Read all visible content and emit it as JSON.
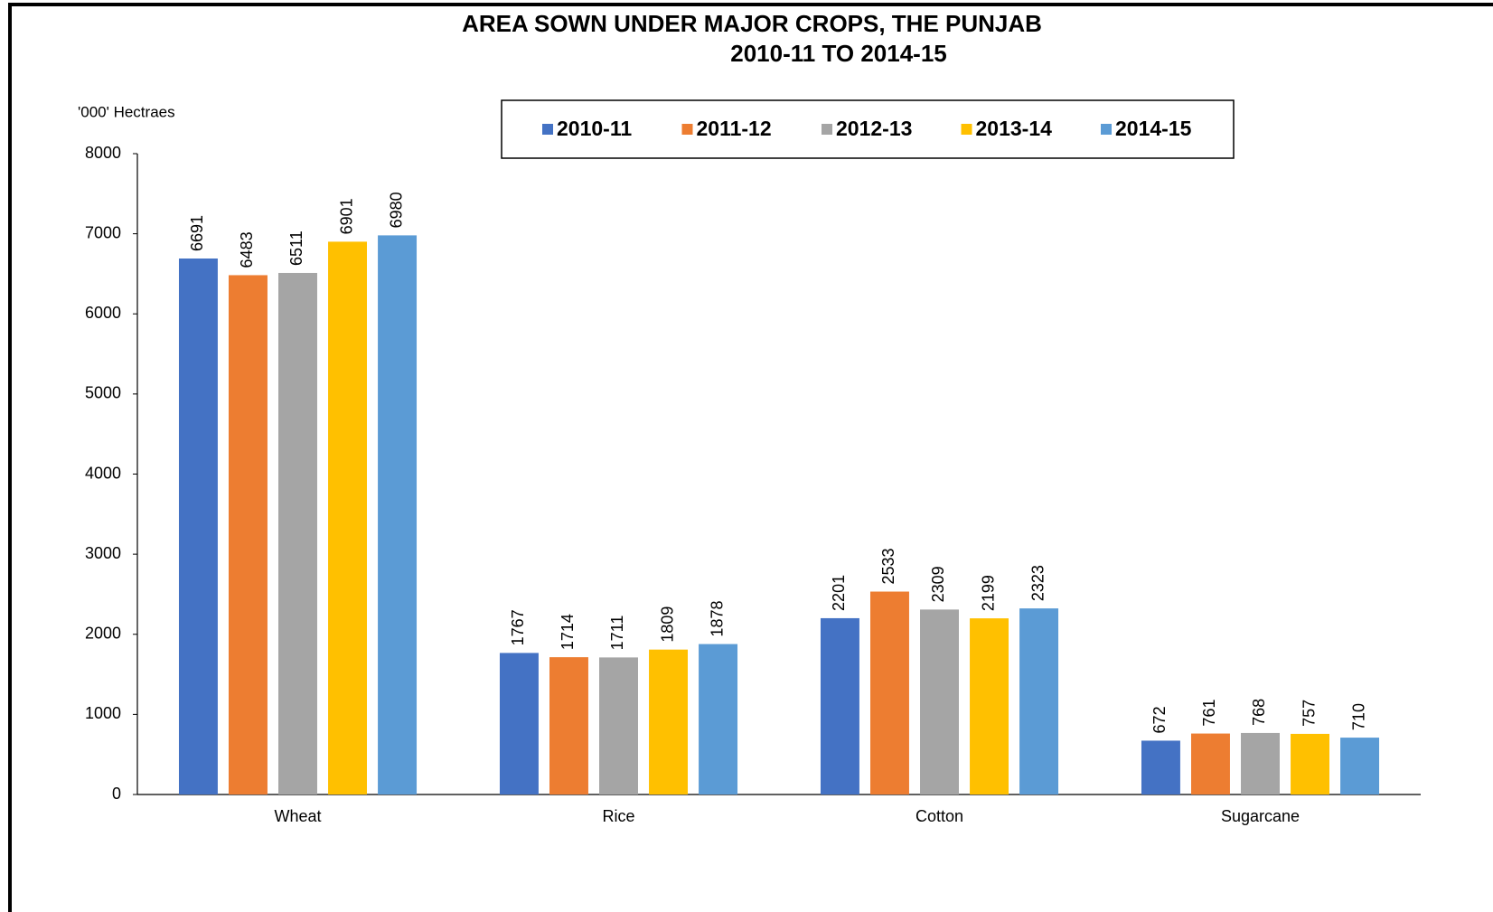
{
  "chart_data": {
    "type": "bar",
    "title": "AREA SOWN UNDER MAJOR CROPS, THE PUNJAB",
    "subtitle": "2010-11 TO 2014-15",
    "y_axis_label": "'000' Hectraes",
    "categories": [
      "Wheat",
      "Rice",
      "Cotton",
      "Sugarcane"
    ],
    "series": [
      {
        "name": "2010-11",
        "color": "#4472c4",
        "values": [
          6691,
          1767,
          2201,
          672
        ]
      },
      {
        "name": "2011-12",
        "color": "#ed7d31",
        "values": [
          6483,
          1714,
          2533,
          761
        ]
      },
      {
        "name": "2012-13",
        "color": "#a5a5a5",
        "values": [
          6511,
          1711,
          2309,
          768
        ]
      },
      {
        "name": "2013-14",
        "color": "#ffc000",
        "values": [
          6901,
          1809,
          2199,
          757
        ]
      },
      {
        "name": "2014-15",
        "color": "#5b9bd5",
        "values": [
          6980,
          1878,
          2323,
          710
        ]
      }
    ],
    "ylim": [
      0,
      8000
    ],
    "yticks": [
      0,
      1000,
      2000,
      3000,
      4000,
      5000,
      6000,
      7000,
      8000
    ],
    "legend": "top",
    "data_labels": true
  }
}
